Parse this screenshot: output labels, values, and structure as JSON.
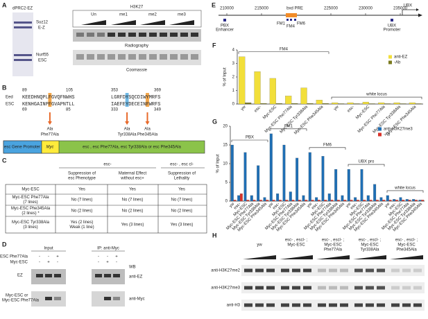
{
  "panels": {
    "A": {
      "label": "A",
      "gel_title": "dPRC2-EZ",
      "bands": [
        "Suz12",
        "E-Z",
        "Nurf55",
        "ESC"
      ],
      "antibody": "H3K27",
      "lanes": [
        "Un",
        "me1",
        "me2",
        "me3"
      ],
      "blots": [
        "Radiography",
        "Coomassie"
      ]
    },
    "B": {
      "label": "B",
      "top_numbers": [
        "89",
        "105",
        "353",
        "369"
      ],
      "bottom_numbers": [
        "69",
        "85",
        "333",
        "349"
      ],
      "eed": {
        "name": "Eed",
        "seq": [
          "KEEDHNQPLFGVQFNWHS",
          "LGRFDYSQCDIWYMRFS"
        ]
      },
      "esc": {
        "name": "ESC",
        "seq": [
          "KENHGAINPFGVAPNTLL",
          "IAEFEYDECEINFWRFS"
        ]
      },
      "mutations": [
        {
          "aa": "Ala",
          "name": "Phe77Ala"
        },
        {
          "aa": "Ala",
          "name": "Tyr338Ala"
        },
        {
          "aa": "Ala",
          "name": "Phe345Ala"
        }
      ],
      "construct": [
        "esc Gene Promoter",
        "Myc",
        "esc , esc Phe77Ala, esc Tyr338Ala or esc Phe345Ala"
      ]
    },
    "C": {
      "label": "C",
      "groups": [
        "esc-",
        "esc- , esc cl-"
      ],
      "columns": [
        [
          "Suppression of",
          "esc Phenotype"
        ],
        [
          "Maternal Effect",
          "without esc+"
        ],
        [
          "Suppression of",
          "Lethality"
        ]
      ],
      "rows": [
        {
          "name": [
            "Myc-ESC"
          ],
          "cells": [
            [
              "Yes"
            ],
            [
              "Yes"
            ],
            [
              "Yes"
            ]
          ]
        },
        {
          "name": [
            "Myc-ESC Phe77Ala",
            "(7 lines)"
          ],
          "cells": [
            [
              "No (7 lines)"
            ],
            [
              "No (7 lines)"
            ],
            [
              "No (7 lines)"
            ]
          ]
        },
        {
          "name": [
            "Myc-ESC Phe345Ala",
            "(2 lines) *"
          ],
          "cells": [
            [
              "No (2 lines)"
            ],
            [
              "No (2 lines)"
            ],
            [
              "No (2 lines)"
            ]
          ]
        },
        {
          "name": [
            "Myc-ESC  Tyr338Ala",
            "(3 lines)"
          ],
          "cells": [
            [
              "Yes (2 lines)",
              "Weak (1 line)"
            ],
            [
              "Yes (3 lines)"
            ],
            [
              "Yes (3 lines)"
            ]
          ]
        }
      ]
    },
    "D": {
      "label": "D",
      "input": "Input",
      "ip": "IP: anti-Myc",
      "rows": [
        {
          "name": "Myc-ESC Phe77Ala",
          "signs": [
            "-",
            "-",
            "+",
            "-",
            "-",
            "+"
          ]
        },
        {
          "name": "Myc-ESC",
          "signs": [
            "-",
            "+",
            "-",
            "-",
            "+",
            "-"
          ]
        }
      ],
      "wb": "WB",
      "band": "EZ",
      "blots": [
        "anti-EZ",
        "anti-Myc"
      ],
      "myc_label": [
        "Myc-ESC or",
        "Myc-ESC Phe77Ala"
      ]
    },
    "E": {
      "label": "E",
      "ticks": [
        210000,
        215000,
        225000,
        230000,
        235000
      ],
      "pre": "bxd PRE",
      "gene": "UBX",
      "fragments": [
        "FM1",
        "FM4",
        "FM6"
      ],
      "pbx": [
        "PBX",
        "Enhancer"
      ],
      "ubx_promoter": [
        "UBX",
        "Promoter"
      ]
    },
    "H": {
      "label": "H",
      "columns": [
        [
          "yw"
        ],
        [
          "esc- , escl- ;",
          "Myc-ESC"
        ],
        [
          "esc- , escl- ;",
          "Myc-ESC",
          "Phe77Ala"
        ],
        [
          "esc- , escl- ;",
          "Myc-ESC",
          "Tyr338Ala"
        ],
        [
          "esc- , escl- ;",
          "Myc-ESC",
          "Phe345Ala"
        ]
      ],
      "rows": [
        "anti-H3K27me2",
        "anti-H3K27me3",
        "anti-H3"
      ]
    }
  },
  "chart_data": [
    {
      "type": "bar",
      "panel": "F",
      "ylabel": "% of Input",
      "categories": [
        "yw",
        "esc-",
        "Myc-ESC",
        "Myc-ESC Phe77Ala",
        "Myc-ESC Tyr338Ala",
        "Myc-ESC Phe345Ala",
        "yw",
        "esc-",
        "Myc-ESC",
        "Myc-ESC Phe77Ala",
        "Myc-ESC Tyr338Ala",
        "Myc-ESC Phe345Ala"
      ],
      "groups": [
        {
          "label": "FM4"
        },
        {
          "label": "white locus"
        }
      ],
      "series": [
        {
          "name": "anti-EZ",
          "color": "#f2df3a",
          "values": [
            3.5,
            2.4,
            1.9,
            0.6,
            1.2,
            0.3,
            0.1,
            0.1,
            0.15,
            0.1,
            0.1,
            0.1
          ]
        },
        {
          "name": "-Ab",
          "color": "#7a7a1e",
          "values": [
            0.1,
            0.05,
            0.05,
            0.05,
            0.05,
            0.05,
            0.03,
            0.03,
            0.03,
            0.03,
            0.03,
            0.03
          ]
        }
      ],
      "ylim": [
        0,
        4
      ],
      "yticks": [
        0,
        1,
        2,
        3,
        4
      ]
    },
    {
      "type": "bar",
      "panel": "G",
      "ylabel": "% of Input",
      "categories": [
        "yw",
        "esc-",
        "Myc-ESC",
        "Myc-ESC Phe77Ala",
        "Myc-ESC Tyr338Ala",
        "Myc-ESC Phe345Ala",
        "yw",
        "esc-",
        "Myc-ESC",
        "Myc-ESC Phe77Ala",
        "Myc-ESC Tyr338Ala",
        "Myc-ESC Phe345Ala",
        "yw",
        "esc-",
        "Myc-ESC",
        "Myc-ESC Phe77Ala",
        "Myc-ESC Tyr338Ala",
        "Myc-ESC Phe345Ala",
        "yw",
        "esc-",
        "Myc-ESC",
        "Myc-ESC Phe77Ala",
        "Myc-ESC Tyr338Ala",
        "Myc-ESC Phe345Ala",
        "yw",
        "esc-",
        "Myc-ESC",
        "Myc-ESC Phe77Ala",
        "Myc-ESC Tyr338Ala",
        "Myc-ESC Phe345Ala"
      ],
      "groups": [
        {
          "label": "PBX"
        },
        {
          "label": "FM1"
        },
        {
          "label": "FM6"
        },
        {
          "label": "UBX pro"
        },
        {
          "label": "white locus"
        }
      ],
      "series": [
        {
          "name": "anti-H3K27me3",
          "color": "#1f6fb5",
          "values": [
            15,
            1.5,
            13,
            1.5,
            9.5,
            1,
            18,
            2,
            15,
            2.5,
            11.5,
            1.5,
            13,
            1,
            12,
            2,
            8.5,
            1.5,
            8.5,
            1,
            8.5,
            1.5,
            4.5,
            1,
            1.5,
            0.5,
            1,
            0.5,
            0.5,
            0.3
          ]
        },
        {
          "name": "-Ab",
          "color": "#d9342b",
          "values": [
            0.3,
            2,
            0.3,
            0.3,
            0.3,
            0.3,
            0.3,
            0.3,
            0.3,
            0.3,
            0.3,
            0.3,
            0.3,
            0.3,
            0.3,
            0.3,
            0.3,
            0.3,
            0.3,
            0.3,
            0.3,
            0.3,
            0.3,
            0.3,
            0.3,
            0.3,
            0.3,
            0.3,
            0.3,
            0.3
          ]
        }
      ],
      "ylim": [
        0,
        20
      ],
      "yticks": [
        0,
        5,
        10,
        15,
        20
      ]
    }
  ]
}
